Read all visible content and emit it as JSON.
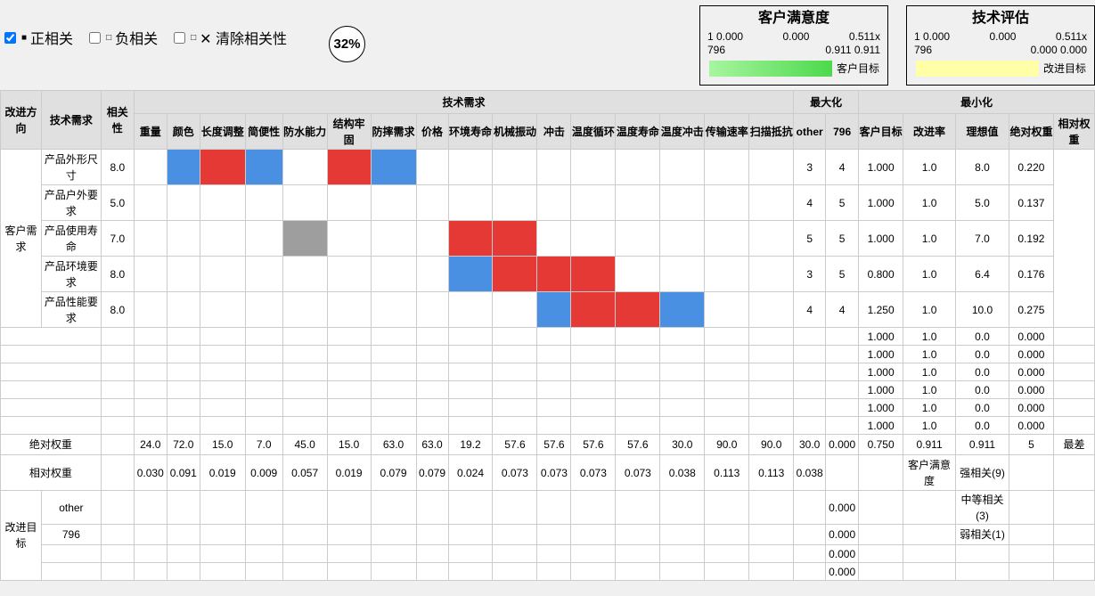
{
  "toolbar": {
    "positive": {
      "label": "正相关",
      "checked": true
    },
    "negative": {
      "label": "负相关",
      "checked": false
    },
    "clear": {
      "label": "✕ 清除相关性",
      "checked": false
    },
    "progress": "32%"
  },
  "satisfaction_box": {
    "title": "客户满意度",
    "labels": [
      "1 0.000",
      "0.000",
      "0.511x",
      "796",
      "0.911 0.911"
    ],
    "vertical": "客户目标",
    "gradient": [
      "#a8f5a0",
      "#4cd94c"
    ]
  },
  "tech_box": {
    "title": "技术评估",
    "labels": [
      "1 0.000",
      "0.000",
      "0.511x",
      "796",
      "0.000 0.000"
    ],
    "vertical": "改进目标",
    "color": "#ffffa8"
  },
  "colors": {
    "strong_positive": "#e53935",
    "positive": "#4a90e2",
    "neutral": "#9e9e9e"
  },
  "header": {
    "direction": "改进方向",
    "tech_req": "技术需求",
    "relevance": "相关性",
    "group_tech": "技术需求",
    "group_max": "最大化",
    "group_min": "最小化",
    "tech_columns": [
      "重量",
      "颜色",
      "长度调整",
      "简便性",
      "防水能力",
      "结构牢固",
      "防摔需求",
      "价格",
      "环境寿命",
      "机械振动",
      "冲击",
      "温度循环",
      "温度寿命",
      "温度冲击",
      "传输速率",
      "扫描抵抗"
    ],
    "max_columns": [
      "other",
      "796"
    ],
    "min_columns": [
      "客户目标",
      "改进率",
      "理想值",
      "绝对权重",
      "相对权重"
    ]
  },
  "customer_group": "客户需求",
  "rows": [
    {
      "name": "产品外形尺寸",
      "relevance": "8.0",
      "cells": {
        "1": "blue",
        "2": "red",
        "3": "blue",
        "5": "red",
        "6": "blue"
      },
      "other": "3",
      "c796": "4",
      "target": "1.000",
      "rate": "1.0",
      "ideal": "8.0",
      "abs": "0.220"
    },
    {
      "name": "产品户外要求",
      "relevance": "5.0",
      "cells": {},
      "other": "4",
      "c796": "5",
      "target": "1.000",
      "rate": "1.0",
      "ideal": "5.0",
      "abs": "0.137"
    },
    {
      "name": "产品使用寿命",
      "relevance": "7.0",
      "cells": {
        "4": "gray",
        "8": "red",
        "9": "red"
      },
      "other": "5",
      "c796": "5",
      "target": "1.000",
      "rate": "1.0",
      "ideal": "7.0",
      "abs": "0.192"
    },
    {
      "name": "产品环境要求",
      "relevance": "8.0",
      "cells": {
        "8": "blue",
        "9": "red",
        "10": "red",
        "11": "red"
      },
      "other": "3",
      "c796": "5",
      "target": "0.800",
      "rate": "1.0",
      "ideal": "6.4",
      "abs": "0.176"
    },
    {
      "name": "产品性能要求",
      "relevance": "8.0",
      "cells": {
        "10": "blue",
        "11": "red",
        "12": "red",
        "13": "blue"
      },
      "other": "4",
      "c796": "4",
      "target": "1.250",
      "rate": "1.0",
      "ideal": "10.0",
      "abs": "0.275"
    }
  ],
  "empty_rows": [
    {
      "target": "1.000",
      "rate": "1.0",
      "ideal": "0.0",
      "abs": "0.000"
    },
    {
      "target": "1.000",
      "rate": "1.0",
      "ideal": "0.0",
      "abs": "0.000"
    },
    {
      "target": "1.000",
      "rate": "1.0",
      "ideal": "0.0",
      "abs": "0.000"
    },
    {
      "target": "1.000",
      "rate": "1.0",
      "ideal": "0.0",
      "abs": "0.000"
    },
    {
      "target": "1.000",
      "rate": "1.0",
      "ideal": "0.0",
      "abs": "0.000"
    },
    {
      "target": "1.000",
      "rate": "1.0",
      "ideal": "0.0",
      "abs": "0.000"
    }
  ],
  "abs_weight": {
    "label": "绝对权重",
    "values": [
      "24.0",
      "72.0",
      "15.0",
      "7.0",
      "45.0",
      "15.0",
      "63.0",
      "63.0",
      "19.2",
      "57.6",
      "57.6",
      "57.6",
      "57.6",
      "30.0",
      "90.0",
      "90.0",
      "30.0",
      "0.000",
      "0.750",
      "0.911",
      "0.911",
      "5",
      "最差"
    ]
  },
  "rel_weight": {
    "label": "相对权重",
    "values": [
      "0.030",
      "0.091",
      "0.019",
      "0.009",
      "0.057",
      "0.019",
      "0.079",
      "0.079",
      "0.024",
      "0.073",
      "0.073",
      "0.073",
      "0.073",
      "0.038",
      "0.113",
      "0.113",
      "0.038",
      "",
      "",
      "客户满意度",
      "强相关(9)",
      "",
      ""
    ]
  },
  "targets": {
    "label": "改进目标",
    "rows": [
      {
        "name": "other",
        "c796": "0.000",
        "legend": "中等相关(3)"
      },
      {
        "name": "796",
        "c796": "0.000",
        "legend": "弱相关(1)"
      },
      {
        "name": "",
        "c796": "0.000",
        "legend": ""
      },
      {
        "name": "",
        "c796": "0.000",
        "legend": ""
      }
    ]
  }
}
